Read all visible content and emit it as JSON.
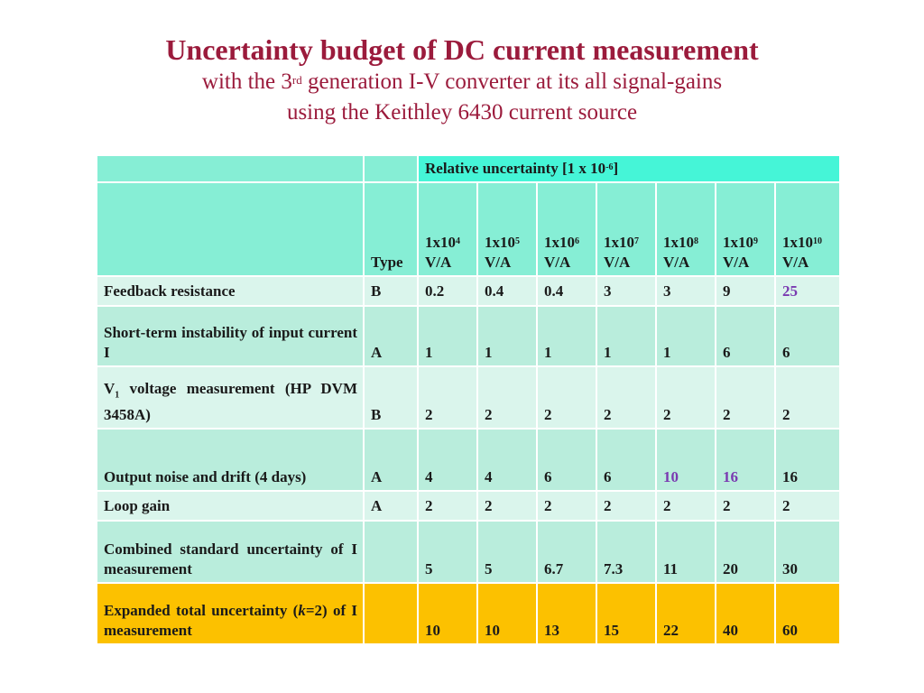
{
  "title": "Uncertainty budget of DC current measurement",
  "subtitle1_a": "with the 3",
  "subtitle1_sup": "rd",
  "subtitle1_b": " generation I-V converter at its all signal-gains",
  "subtitle2": "using the Keithley 6430 current source",
  "colors": {
    "title": "#9b1b3c",
    "header_top": "#45f5d7",
    "header": "#86eed5",
    "row_odd": "#b9eddc",
    "row_even": "#daf5ec",
    "expanded": "#fcc100",
    "highlight": "#7a3ab1"
  },
  "table": {
    "group_header_a": "Relative uncertainty [1 x 10",
    "group_header_sup": "-6",
    "group_header_b": "]",
    "type_header": "Type",
    "gains": [
      {
        "base": "1x10",
        "exp": "4",
        "unit": "V/A"
      },
      {
        "base": "1x10",
        "exp": "5",
        "unit": "V/A"
      },
      {
        "base": "1x10",
        "exp": "6",
        "unit": "V/A"
      },
      {
        "base": "1x10",
        "exp": "7",
        "unit": "V/A"
      },
      {
        "base": "1x10",
        "exp": "8",
        "unit": "V/A"
      },
      {
        "base": "1x10",
        "exp": "9",
        "unit": "V/A"
      },
      {
        "base": "1x10",
        "exp": "10",
        "unit": "V/A"
      }
    ],
    "rows": [
      {
        "label": "Feedback resistance",
        "type": "B",
        "values": [
          "0.2",
          "0.4",
          "0.4",
          "3",
          "3",
          "9",
          "25"
        ]
      },
      {
        "label": "Short-term instability of input current I",
        "type": "A",
        "values": [
          "1",
          "1",
          "1",
          "1",
          "1",
          "6",
          "6"
        ]
      },
      {
        "label_a": "V",
        "label_sub": "1",
        "label_b": " voltage measurement (HP DVM 3458A)",
        "type": "B",
        "values": [
          "2",
          "2",
          "2",
          "2",
          "2",
          "2",
          "2"
        ]
      },
      {
        "label": "Output noise and drift (4 days)",
        "type": "A",
        "values": [
          "4",
          "4",
          "6",
          "6",
          "10",
          "16",
          "16"
        ]
      },
      {
        "label": "Loop gain",
        "type": "A",
        "values": [
          "2",
          "2",
          "2",
          "2",
          "2",
          "2",
          "2"
        ]
      },
      {
        "label": "Combined standard uncertainty of I measurement",
        "type": "",
        "values": [
          "5",
          "5",
          "6.7",
          "7.3",
          "11",
          "20",
          "30"
        ]
      },
      {
        "label_a": "Expanded total uncertainty (",
        "label_k": "k",
        "label_b": "=2) of I measurement",
        "type": "",
        "values": [
          "10",
          "10",
          "13",
          "15",
          "22",
          "40",
          "60"
        ]
      }
    ]
  }
}
